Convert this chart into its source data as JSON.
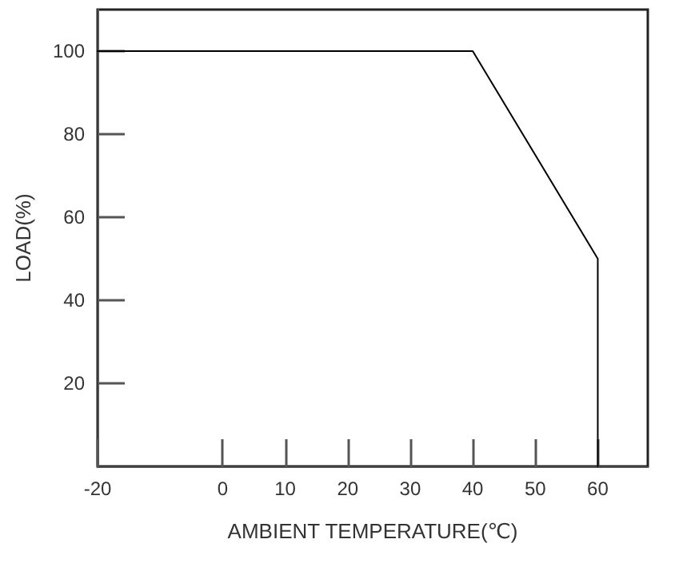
{
  "chart_data": {
    "type": "line",
    "xlabel": "AMBIENT TEMPERATURE(℃)",
    "ylabel": "LOAD(%)",
    "x": [
      -20,
      40,
      60,
      60
    ],
    "series": [
      {
        "color": "#000000",
        "values": [
          100,
          100,
          50,
          0
        ]
      }
    ],
    "xlim": [
      -20,
      68
    ],
    "xticks": [
      -20,
      0,
      10,
      20,
      30,
      40,
      50,
      60
    ],
    "ylim": [
      0,
      110
    ],
    "yticks": [
      20,
      40,
      60,
      80,
      100
    ],
    "grid": false,
    "marker": "none",
    "line_style": "solid"
  }
}
